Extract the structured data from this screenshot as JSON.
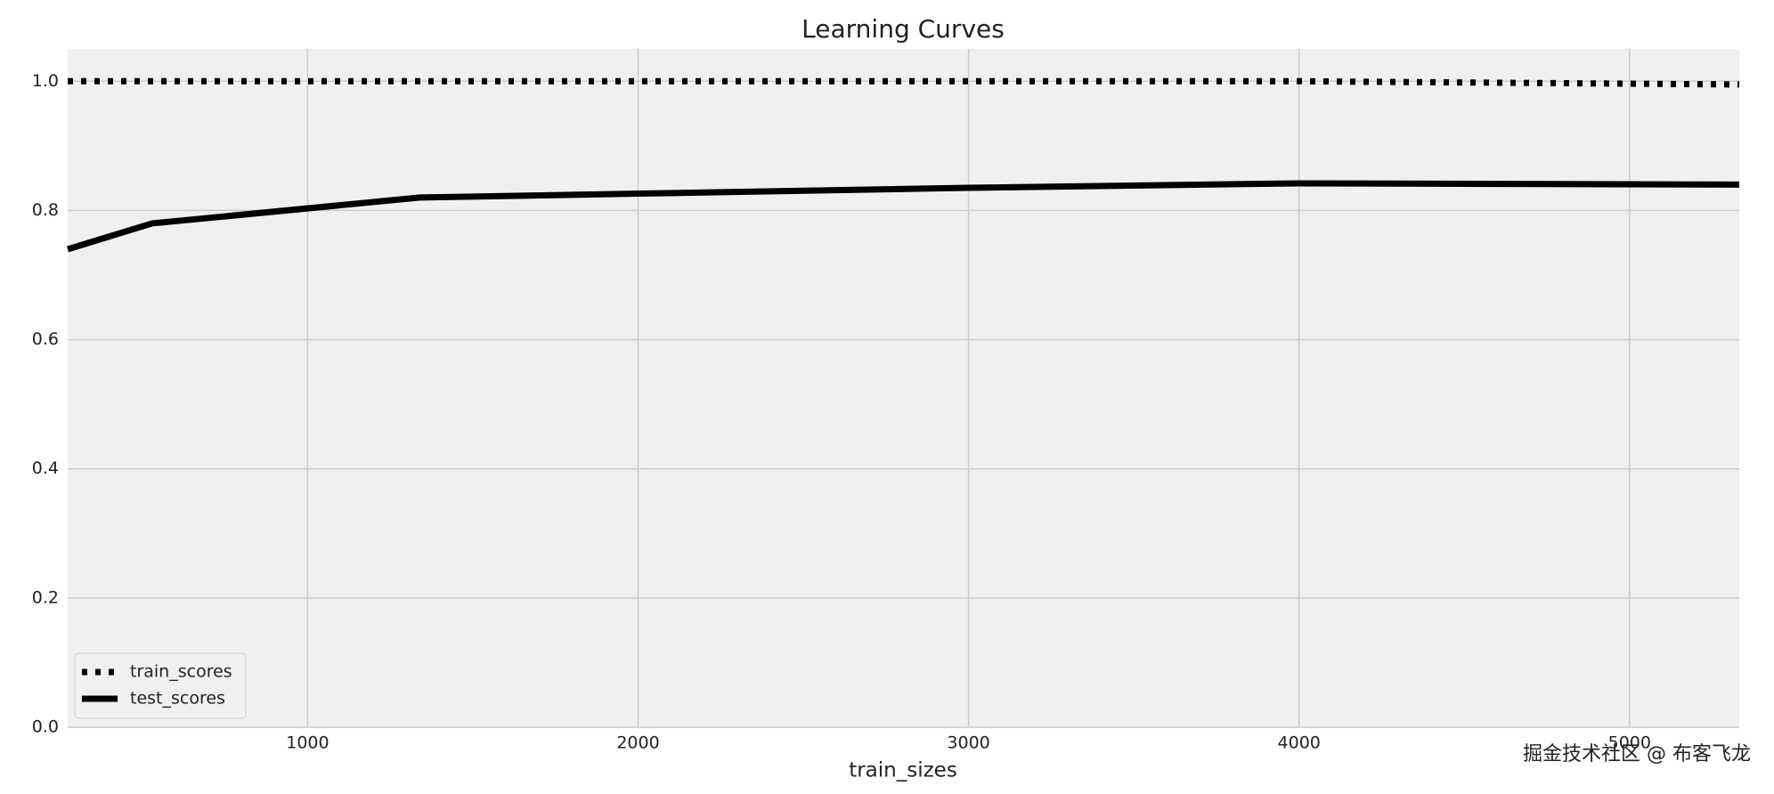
{
  "chart_data": {
    "type": "line",
    "title": "Learning Curves",
    "x_label": "train_sizes",
    "x": [
      274,
      530,
      1340,
      2000,
      3000,
      4000,
      5332
    ],
    "series": [
      {
        "name": "train_scores",
        "color": "#000000",
        "style": "dotted",
        "values": [
          1.0,
          1.0,
          1.0,
          1.0,
          1.0,
          1.0,
          0.995
        ]
      },
      {
        "name": "test_scores",
        "color": "#000000",
        "style": "solid",
        "values": [
          0.74,
          0.78,
          0.82,
          0.826,
          0.835,
          0.842,
          0.84
        ]
      }
    ],
    "xlim": [
      274,
      5332
    ],
    "ylim": [
      0,
      1.05
    ],
    "xticks": [
      1000,
      2000,
      3000,
      4000,
      5000
    ],
    "yticks": [
      {
        "value": 0,
        "label": "0.0"
      },
      0.2,
      0.4,
      0.6,
      0.8,
      {
        "value": 1,
        "label": "1.0"
      }
    ],
    "grid": true,
    "legend": "lower left",
    "watermark": "掘金技术社区 @ 布客飞龙"
  }
}
